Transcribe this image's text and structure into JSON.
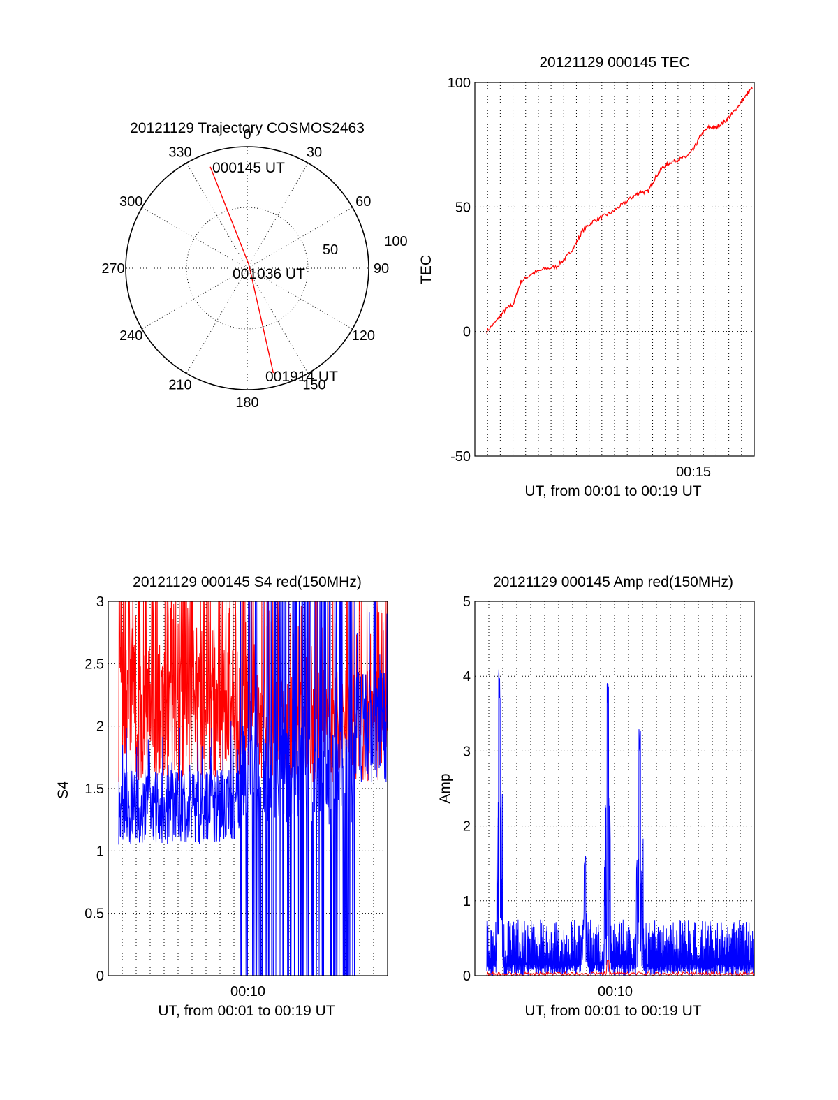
{
  "chart_data": [
    {
      "type": "polar",
      "title": "20121129 Trajectory COSMOS2463",
      "angle_labels": [
        "0",
        "30",
        "60",
        "90",
        "120",
        "150",
        "180",
        "210",
        "240",
        "270",
        "300",
        "330"
      ],
      "radius_labels": [
        "50",
        "100"
      ],
      "series": [
        {
          "color": "#ff0000",
          "points": [
            {
              "azimuth": 340,
              "elevation": 10
            },
            {
              "azimuth": 203,
              "elevation": 93
            },
            {
              "azimuth": 166,
              "elevation": 10
            }
          ]
        }
      ],
      "annotations": [
        "000145 UT",
        "001036 UT",
        "001914 UT"
      ]
    },
    {
      "type": "line",
      "title": "20121129 000145 TEC",
      "xlabel": "UT, from 00:01 to 00:19 UT",
      "ylabel": "TEC",
      "xtick_labels": [
        "00:15"
      ],
      "ytick_labels": [
        "100",
        "50",
        "0",
        "-50"
      ],
      "ylim": [
        -50,
        100
      ],
      "grid": true,
      "series": [
        {
          "color": "#ff0000",
          "x": [
            "00:01:45",
            "00:02:30",
            "00:03:00",
            "00:03:30",
            "00:04:00",
            "00:04:40",
            "00:05:30",
            "00:06:20",
            "00:07:00",
            "00:07:30",
            "00:08:00",
            "00:08:40",
            "00:09:20",
            "00:10:00",
            "00:10:40",
            "00:11:20",
            "00:11:50",
            "00:12:20",
            "00:12:50",
            "00:13:20",
            "00:13:50",
            "00:14:20",
            "00:14:50",
            "00:15:20",
            "00:15:50",
            "00:16:20",
            "00:16:50",
            "00:17:20",
            "00:17:50",
            "00:18:20",
            "00:18:50",
            "00:19:14"
          ],
          "y": [
            0,
            5,
            9,
            11,
            20,
            23,
            25,
            26,
            30,
            34,
            40,
            44,
            46,
            48,
            51,
            54,
            56,
            56,
            62,
            66,
            68,
            69,
            70,
            73,
            79,
            82,
            82,
            84,
            87,
            91,
            95,
            98
          ]
        }
      ]
    },
    {
      "type": "line",
      "title": "20121129 000145 S4 red(150MHz)",
      "xlabel": "UT, from 00:01 to 00:19 UT",
      "ylabel": "S4",
      "xtick_labels": [
        "00:10"
      ],
      "ytick_labels": [
        "3",
        "2.5",
        "2",
        "1.5",
        "1",
        "0.5",
        "0"
      ],
      "ylim": [
        0,
        3
      ],
      "grid": true,
      "series": [
        {
          "color": "#ff0000",
          "x_range": [
            "00:01",
            "00:19"
          ],
          "typical_range": [
            1.6,
            3.0
          ],
          "mean": 2.2
        },
        {
          "color": "#0000ff",
          "x_range": [
            "00:01",
            "00:19"
          ],
          "typical_range": [
            0.9,
            3.0
          ],
          "mean": 1.4
        }
      ]
    },
    {
      "type": "line",
      "title": "20121129 000145 Amp red(150MHz)",
      "xlabel": "UT, from 00:01 to 00:19 UT",
      "ylabel": "Amp",
      "xtick_labels": [
        "00:10"
      ],
      "ytick_labels": [
        "5",
        "4",
        "3",
        "2",
        "1",
        "0"
      ],
      "ylim": [
        0,
        5
      ],
      "grid": true,
      "series": [
        {
          "color": "#0000ff",
          "baseline": 0.5,
          "peaks": [
            {
              "x": "00:02:35",
              "y": 4.1
            },
            {
              "x": "00:08:10",
              "y": 1.6
            },
            {
              "x": "00:09:40",
              "y": 4.0
            },
            {
              "x": "00:11:45",
              "y": 3.3
            }
          ]
        },
        {
          "color": "#ff0000",
          "baseline": 0.05,
          "peaks": [
            {
              "x": "00:09:40",
              "y": 0.2
            }
          ]
        }
      ]
    }
  ]
}
